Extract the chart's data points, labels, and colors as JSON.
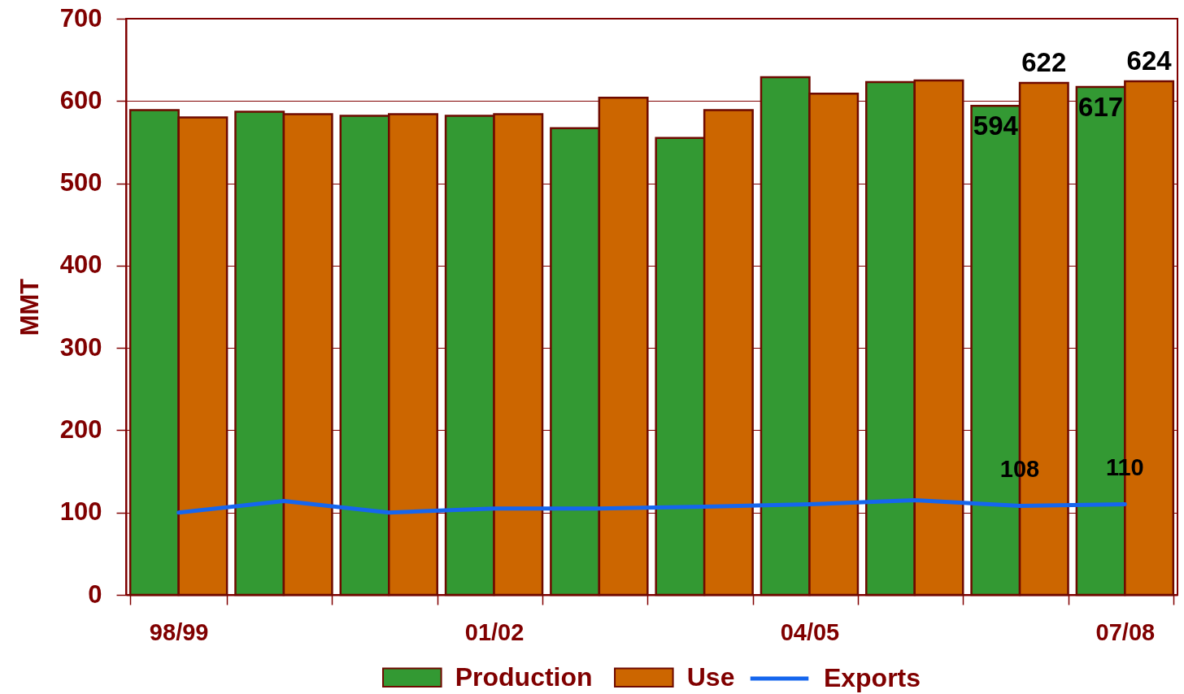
{
  "chart_data": {
    "type": "bar",
    "ylabel": "MMT",
    "categories": [
      "98/99",
      null,
      null,
      "01/02",
      null,
      null,
      "04/05",
      null,
      null,
      "07/08"
    ],
    "series": [
      {
        "name": "Production",
        "color": "#339933",
        "values": [
          589,
          587,
          582,
          582,
          567,
          555,
          629,
          623,
          594,
          617
        ],
        "value_labels": [
          null,
          null,
          null,
          null,
          null,
          null,
          null,
          null,
          "594",
          "617"
        ]
      },
      {
        "name": "Use",
        "color": "#cc6600",
        "values": [
          580,
          584,
          584,
          584,
          604,
          589,
          609,
          625,
          622,
          624
        ],
        "value_labels": [
          null,
          null,
          null,
          null,
          null,
          null,
          null,
          null,
          "622",
          "624"
        ]
      },
      {
        "name": "Exports",
        "type": "line",
        "color": "#1566ee",
        "values": [
          100,
          114,
          100,
          105,
          105,
          107,
          110,
          115,
          108,
          110
        ],
        "value_labels": [
          null,
          null,
          null,
          null,
          null,
          null,
          null,
          null,
          "108",
          "110"
        ]
      }
    ],
    "ylim": [
      0,
      700
    ],
    "yticks": [
      0,
      100,
      200,
      300,
      400,
      500,
      600,
      700
    ],
    "grid": "y",
    "legend": "bottom"
  }
}
